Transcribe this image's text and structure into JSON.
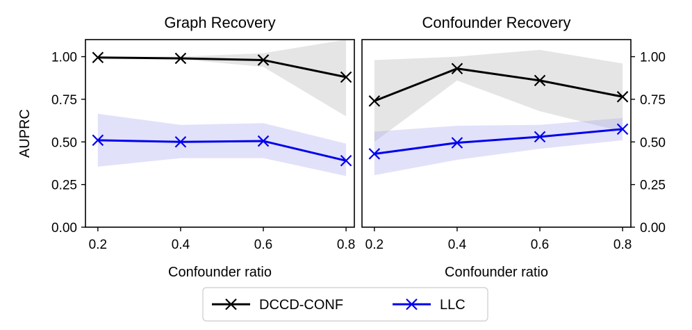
{
  "chart_data": [
    {
      "type": "line",
      "title": "Graph Recovery",
      "xlabel": "Confounder ratio",
      "ylabel": "AUPRC",
      "x": [
        0.2,
        0.4,
        0.6,
        0.8
      ],
      "xticks": [
        "0.2",
        "0.4",
        "0.6",
        "0.8"
      ],
      "yticks": [
        "0.00",
        "0.25",
        "0.50",
        "0.75",
        "1.00"
      ],
      "xlim": [
        0.17,
        0.82
      ],
      "ylim": [
        0,
        1.1
      ],
      "y_axis_side": "left",
      "series": [
        {
          "name": "DCCD-CONF",
          "color": "#000000",
          "band_color": "#b5b5b5",
          "values": [
            0.995,
            0.99,
            0.98,
            0.88
          ],
          "lower": [
            0.985,
            0.985,
            0.94,
            0.65
          ],
          "upper": [
            1.0,
            1.0,
            1.02,
            1.1
          ]
        },
        {
          "name": "LLC",
          "color": "#0000ee",
          "band_color": "#a8a8f2",
          "values": [
            0.51,
            0.5,
            0.505,
            0.39
          ],
          "lower": [
            0.355,
            0.405,
            0.405,
            0.3
          ],
          "upper": [
            0.665,
            0.6,
            0.61,
            0.49
          ]
        }
      ]
    },
    {
      "type": "line",
      "title": "Confounder Recovery",
      "xlabel": "Confounder ratio",
      "ylabel": "",
      "x": [
        0.2,
        0.4,
        0.6,
        0.8
      ],
      "xticks": [
        "0.2",
        "0.4",
        "0.6",
        "0.8"
      ],
      "yticks": [
        "0.00",
        "0.25",
        "0.50",
        "0.75",
        "1.00"
      ],
      "xlim": [
        0.17,
        0.82
      ],
      "ylim": [
        0,
        1.1
      ],
      "y_axis_side": "right",
      "series": [
        {
          "name": "DCCD-CONF",
          "color": "#000000",
          "band_color": "#b5b5b5",
          "values": [
            0.74,
            0.93,
            0.86,
            0.765
          ],
          "lower": [
            0.5,
            0.86,
            0.68,
            0.56
          ],
          "upper": [
            0.98,
            1.0,
            1.04,
            0.96
          ]
        },
        {
          "name": "LLC",
          "color": "#0000ee",
          "band_color": "#a8a8f2",
          "values": [
            0.43,
            0.495,
            0.53,
            0.575
          ],
          "lower": [
            0.305,
            0.395,
            0.46,
            0.51
          ],
          "upper": [
            0.56,
            0.595,
            0.6,
            0.64
          ]
        }
      ]
    }
  ],
  "legend": {
    "placement": "bottom-center",
    "entries": [
      "DCCD-CONF",
      "LLC"
    ]
  }
}
